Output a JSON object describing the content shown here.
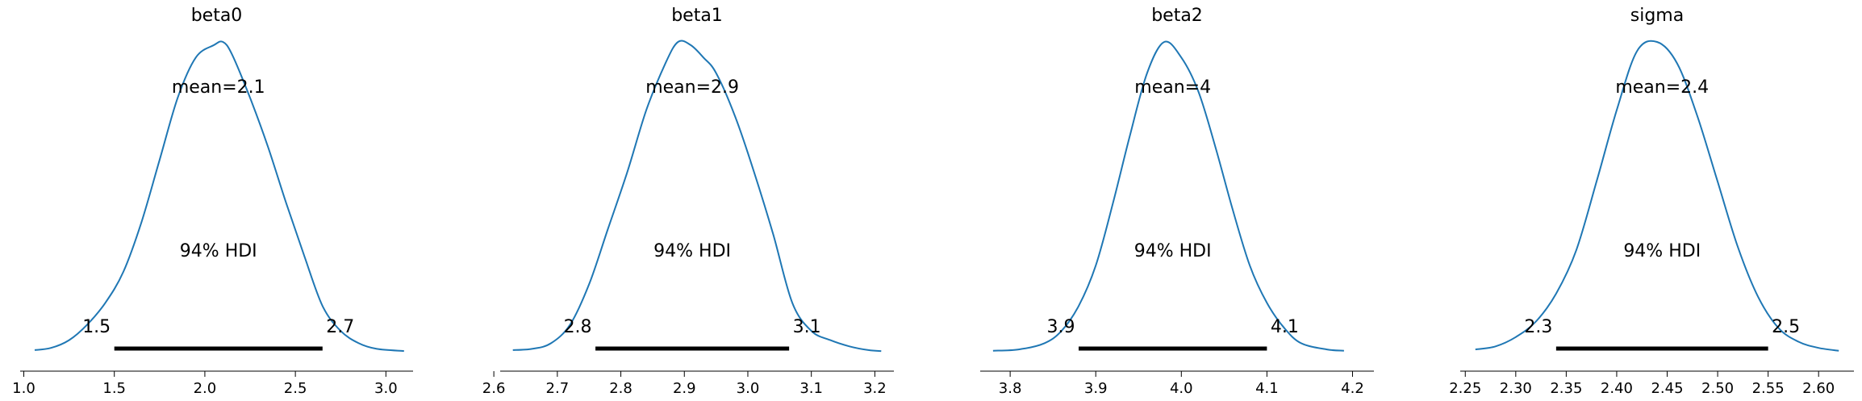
{
  "chart_data": [
    {
      "type": "line",
      "title": "beta0",
      "mean_label": "mean=2.1",
      "hdi_label": "94% HDI",
      "hdi": [
        1.5,
        2.65
      ],
      "hdi_labels": [
        "1.5",
        "2.7"
      ],
      "xlim": [
        0.98,
        3.15
      ],
      "xticks": [
        1.0,
        1.5,
        2.0,
        2.5,
        3.0
      ],
      "xtick_labels": [
        "1.0",
        "1.5",
        "2.0",
        "2.5",
        "3.0"
      ],
      "density": {
        "x": [
          1.06,
          1.15,
          1.25,
          1.35,
          1.45,
          1.55,
          1.65,
          1.75,
          1.85,
          1.95,
          2.05,
          2.1,
          2.15,
          2.25,
          2.35,
          2.45,
          2.55,
          2.65,
          2.75,
          2.85,
          2.95,
          3.1
        ],
        "y": [
          0.008,
          0.015,
          0.04,
          0.09,
          0.16,
          0.26,
          0.42,
          0.62,
          0.82,
          0.95,
          0.99,
          1.0,
          0.96,
          0.82,
          0.66,
          0.48,
          0.31,
          0.15,
          0.07,
          0.03,
          0.012,
          0.005
        ]
      }
    },
    {
      "type": "line",
      "title": "beta1",
      "mean_label": "mean=2.9",
      "hdi_label": "94% HDI",
      "hdi": [
        2.76,
        3.065
      ],
      "hdi_labels": [
        "2.8",
        "3.1"
      ],
      "xlim": [
        2.61,
        3.23
      ],
      "xticks": [
        2.6,
        2.7,
        2.8,
        2.9,
        3.0,
        3.1,
        3.2
      ],
      "xtick_labels": [
        "2.6",
        "2.7",
        "2.8",
        "2.9",
        "3.0",
        "3.1",
        "3.2"
      ],
      "density": {
        "x": [
          2.63,
          2.66,
          2.69,
          2.72,
          2.75,
          2.78,
          2.81,
          2.84,
          2.87,
          2.89,
          2.91,
          2.93,
          2.95,
          2.98,
          3.01,
          3.04,
          3.07,
          3.1,
          3.13,
          3.16,
          3.19,
          3.21
        ],
        "y": [
          0.008,
          0.012,
          0.03,
          0.09,
          0.22,
          0.4,
          0.58,
          0.78,
          0.93,
          1.0,
          0.99,
          0.95,
          0.9,
          0.76,
          0.58,
          0.38,
          0.16,
          0.07,
          0.04,
          0.02,
          0.008,
          0.005
        ]
      }
    },
    {
      "type": "line",
      "title": "beta2",
      "mean_label": "mean=4",
      "hdi_label": "94% HDI",
      "hdi": [
        3.88,
        4.1
      ],
      "hdi_labels": [
        "3.9",
        "4.1"
      ],
      "xlim": [
        3.765,
        4.225
      ],
      "xticks": [
        3.8,
        3.9,
        4.0,
        4.1,
        4.2
      ],
      "xtick_labels": [
        "3.8",
        "3.9",
        "4.0",
        "4.1",
        "4.2"
      ],
      "density": {
        "x": [
          3.78,
          3.81,
          3.84,
          3.86,
          3.88,
          3.9,
          3.92,
          3.94,
          3.96,
          3.98,
          4.0,
          4.02,
          4.04,
          4.06,
          4.08,
          4.1,
          4.12,
          4.14,
          4.17,
          4.19
        ],
        "y": [
          0.006,
          0.01,
          0.03,
          0.07,
          0.15,
          0.28,
          0.48,
          0.7,
          0.9,
          1.0,
          0.95,
          0.84,
          0.66,
          0.46,
          0.28,
          0.16,
          0.08,
          0.03,
          0.01,
          0.006
        ]
      }
    },
    {
      "type": "line",
      "title": "sigma",
      "mean_label": "mean=2.4",
      "hdi_label": "94% HDI",
      "hdi": [
        2.34,
        2.55
      ],
      "hdi_labels": [
        "2.3",
        "2.5"
      ],
      "xlim": [
        2.245,
        2.635
      ],
      "xticks": [
        2.25,
        2.3,
        2.35,
        2.4,
        2.45,
        2.5,
        2.55,
        2.6
      ],
      "xtick_labels": [
        "2.25",
        "2.30",
        "2.35",
        "2.40",
        "2.45",
        "2.50",
        "2.55",
        "2.60"
      ],
      "density": {
        "x": [
          2.26,
          2.28,
          2.3,
          2.32,
          2.34,
          2.36,
          2.38,
          2.4,
          2.42,
          2.44,
          2.46,
          2.48,
          2.5,
          2.52,
          2.54,
          2.56,
          2.58,
          2.6,
          2.62
        ],
        "y": [
          0.01,
          0.02,
          0.05,
          0.1,
          0.19,
          0.33,
          0.55,
          0.78,
          0.97,
          1.0,
          0.93,
          0.76,
          0.55,
          0.34,
          0.18,
          0.08,
          0.035,
          0.015,
          0.006
        ]
      }
    }
  ],
  "style": {
    "line_color": "#1f77b4",
    "hdi_color": "#000000",
    "axis_color": "#000000"
  }
}
